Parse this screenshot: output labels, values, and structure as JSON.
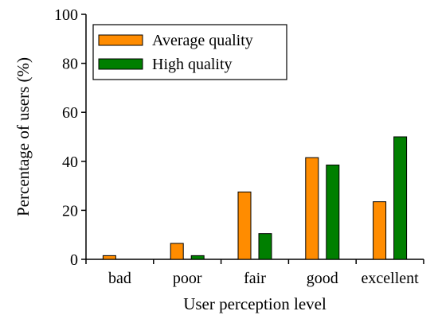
{
  "chart_data": {
    "type": "bar",
    "title": "",
    "xlabel": "User perception level",
    "ylabel": "Percentage of users (%)",
    "categories": [
      "bad",
      "poor",
      "fair",
      "good",
      "excellent"
    ],
    "series": [
      {
        "name": "Average quality",
        "color": "#ff8c00",
        "values": [
          1.5,
          6.5,
          27.5,
          41.5,
          23.5
        ]
      },
      {
        "name": "High quality",
        "color": "#007f00",
        "values": [
          0,
          1.5,
          10.5,
          38.5,
          50
        ]
      }
    ],
    "ylim": [
      0,
      100
    ],
    "yticks": [
      0,
      20,
      40,
      60,
      80,
      100
    ],
    "grid": false,
    "legend_position": "top-left"
  }
}
